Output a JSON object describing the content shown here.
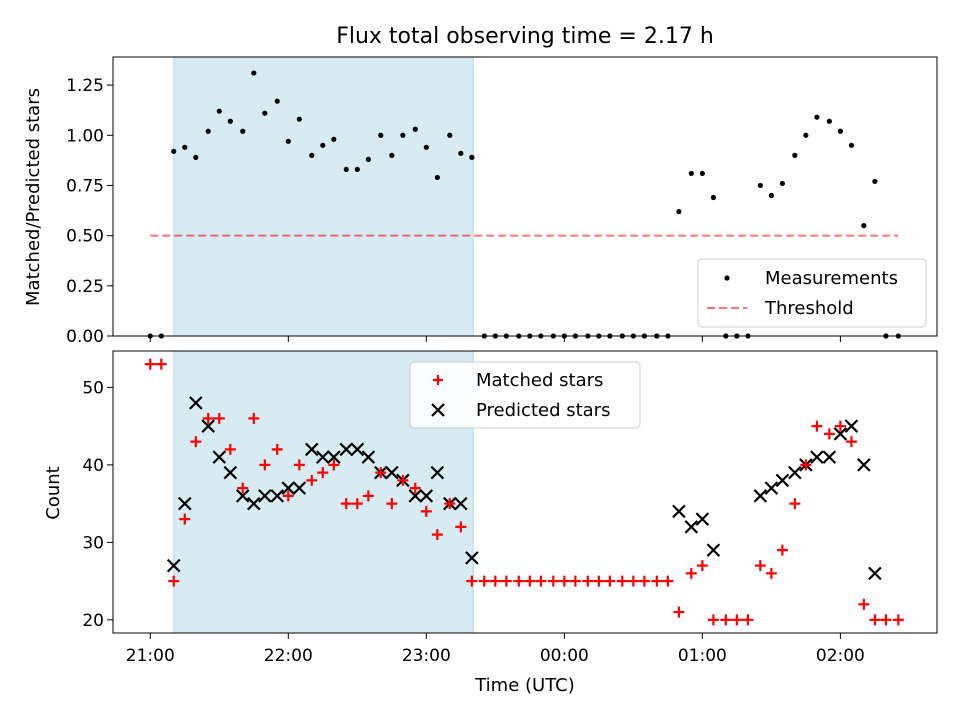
{
  "chart_data": [
    {
      "type": "scatter",
      "title": "Flux total observing time = 2.17 h",
      "xlabel": "",
      "ylabel": "Matched/Predicted stars",
      "x_unit": "hours since 21:00 UTC",
      "xlim": [
        -0.27,
        5.7
      ],
      "ylim": [
        0,
        1.39
      ],
      "yticks": [
        "0.00",
        "0.25",
        "0.50",
        "0.75",
        "1.00",
        "1.25"
      ],
      "ytick_values": [
        0,
        0.25,
        0.5,
        0.75,
        1.0,
        1.25
      ],
      "shaded_region": {
        "x_start": 0.17,
        "x_end": 2.34,
        "color": "#add8e6"
      },
      "legend": {
        "position": "lower right",
        "entries": [
          "Measurements",
          "Threshold"
        ]
      },
      "threshold": {
        "name": "Threshold",
        "y": 0.5,
        "x_start": 0.0,
        "x_end": 5.42,
        "color": "#ff0000",
        "style": "dashed"
      },
      "series": [
        {
          "name": "Measurements",
          "color": "#000000",
          "marker": "dot",
          "points": [
            [
              0.0,
              0.0
            ],
            [
              0.08,
              0.0
            ],
            [
              0.17,
              0.92
            ],
            [
              0.25,
              0.94
            ],
            [
              0.33,
              0.89
            ],
            [
              0.42,
              1.02
            ],
            [
              0.5,
              1.12
            ],
            [
              0.58,
              1.07
            ],
            [
              0.67,
              1.02
            ],
            [
              0.75,
              1.31
            ],
            [
              0.83,
              1.11
            ],
            [
              0.92,
              1.17
            ],
            [
              1.0,
              0.97
            ],
            [
              1.08,
              1.08
            ],
            [
              1.17,
              0.9
            ],
            [
              1.25,
              0.95
            ],
            [
              1.33,
              0.98
            ],
            [
              1.42,
              0.83
            ],
            [
              1.5,
              0.83
            ],
            [
              1.58,
              0.88
            ],
            [
              1.67,
              1.0
            ],
            [
              1.75,
              0.9
            ],
            [
              1.83,
              1.0
            ],
            [
              1.92,
              1.03
            ],
            [
              2.0,
              0.94
            ],
            [
              2.08,
              0.79
            ],
            [
              2.17,
              1.0
            ],
            [
              2.25,
              0.91
            ],
            [
              2.33,
              0.89
            ],
            [
              2.42,
              0.0
            ],
            [
              2.5,
              0.0
            ],
            [
              2.58,
              0.0
            ],
            [
              2.67,
              0.0
            ],
            [
              2.75,
              0.0
            ],
            [
              2.83,
              0.0
            ],
            [
              2.92,
              0.0
            ],
            [
              3.0,
              0.0
            ],
            [
              3.08,
              0.0
            ],
            [
              3.17,
              0.0
            ],
            [
              3.25,
              0.0
            ],
            [
              3.33,
              0.0
            ],
            [
              3.42,
              0.0
            ],
            [
              3.5,
              0.0
            ],
            [
              3.58,
              0.0
            ],
            [
              3.67,
              0.0
            ],
            [
              3.75,
              0.0
            ],
            [
              3.83,
              0.62
            ],
            [
              3.92,
              0.81
            ],
            [
              4.0,
              0.81
            ],
            [
              4.08,
              0.69
            ],
            [
              4.17,
              0.0
            ],
            [
              4.25,
              0.0
            ],
            [
              4.33,
              0.0
            ],
            [
              4.42,
              0.75
            ],
            [
              4.5,
              0.7
            ],
            [
              4.58,
              0.76
            ],
            [
              4.67,
              0.9
            ],
            [
              4.75,
              1.0
            ],
            [
              4.83,
              1.09
            ],
            [
              4.92,
              1.07
            ],
            [
              5.0,
              1.02
            ],
            [
              5.08,
              0.95
            ],
            [
              5.17,
              0.55
            ],
            [
              5.25,
              0.77
            ],
            [
              5.33,
              0.0
            ],
            [
              5.42,
              0.0
            ]
          ]
        }
      ]
    },
    {
      "type": "scatter",
      "title": "",
      "xlabel": "Time (UTC)",
      "ylabel": "Count",
      "x_unit": "hours since 21:00 UTC",
      "xlim": [
        -0.27,
        5.7
      ],
      "ylim": [
        18.3,
        54.7
      ],
      "yticks": [
        "20",
        "30",
        "40",
        "50"
      ],
      "ytick_values": [
        20,
        30,
        40,
        50
      ],
      "xticks": [
        "21:00",
        "22:00",
        "23:00",
        "00:00",
        "01:00",
        "02:00"
      ],
      "xtick_values": [
        0,
        1,
        2,
        3,
        4,
        5
      ],
      "shaded_region": {
        "x_start": 0.17,
        "x_end": 2.34,
        "color": "#add8e6"
      },
      "legend": {
        "position": "upper center",
        "entries": [
          "Matched stars",
          "Predicted stars"
        ]
      },
      "series": [
        {
          "name": "Matched stars",
          "color": "#ff0000",
          "marker": "+",
          "points": [
            [
              0.0,
              53
            ],
            [
              0.08,
              53
            ],
            [
              0.17,
              25
            ],
            [
              0.25,
              33
            ],
            [
              0.33,
              43
            ],
            [
              0.42,
              46
            ],
            [
              0.5,
              46
            ],
            [
              0.58,
              42
            ],
            [
              0.67,
              37
            ],
            [
              0.75,
              46
            ],
            [
              0.83,
              40
            ],
            [
              0.92,
              42
            ],
            [
              1.0,
              36
            ],
            [
              1.08,
              40
            ],
            [
              1.17,
              38
            ],
            [
              1.25,
              39
            ],
            [
              1.33,
              40
            ],
            [
              1.42,
              35
            ],
            [
              1.5,
              35
            ],
            [
              1.58,
              36
            ],
            [
              1.67,
              39
            ],
            [
              1.75,
              35
            ],
            [
              1.83,
              38
            ],
            [
              1.92,
              37
            ],
            [
              2.0,
              34
            ],
            [
              2.08,
              31
            ],
            [
              2.17,
              35
            ],
            [
              2.25,
              32
            ],
            [
              2.33,
              25
            ],
            [
              2.42,
              25
            ],
            [
              2.5,
              25
            ],
            [
              2.58,
              25
            ],
            [
              2.67,
              25
            ],
            [
              2.75,
              25
            ],
            [
              2.83,
              25
            ],
            [
              2.92,
              25
            ],
            [
              3.0,
              25
            ],
            [
              3.08,
              25
            ],
            [
              3.17,
              25
            ],
            [
              3.25,
              25
            ],
            [
              3.33,
              25
            ],
            [
              3.42,
              25
            ],
            [
              3.5,
              25
            ],
            [
              3.58,
              25
            ],
            [
              3.67,
              25
            ],
            [
              3.75,
              25
            ],
            [
              3.83,
              21
            ],
            [
              3.92,
              26
            ],
            [
              4.0,
              27
            ],
            [
              4.08,
              20
            ],
            [
              4.17,
              20
            ],
            [
              4.25,
              20
            ],
            [
              4.33,
              20
            ],
            [
              4.42,
              27
            ],
            [
              4.5,
              26
            ],
            [
              4.58,
              29
            ],
            [
              4.67,
              35
            ],
            [
              4.75,
              40
            ],
            [
              4.83,
              45
            ],
            [
              4.92,
              44
            ],
            [
              5.0,
              45
            ],
            [
              5.08,
              43
            ],
            [
              5.17,
              22
            ],
            [
              5.25,
              20
            ],
            [
              5.33,
              20
            ],
            [
              5.42,
              20
            ]
          ]
        },
        {
          "name": "Predicted stars",
          "color": "#000000",
          "marker": "x",
          "points": [
            [
              0.17,
              27
            ],
            [
              0.25,
              35
            ],
            [
              0.33,
              48
            ],
            [
              0.42,
              45
            ],
            [
              0.5,
              41
            ],
            [
              0.58,
              39
            ],
            [
              0.67,
              36
            ],
            [
              0.75,
              35
            ],
            [
              0.83,
              36
            ],
            [
              0.92,
              36
            ],
            [
              1.0,
              37
            ],
            [
              1.08,
              37
            ],
            [
              1.17,
              42
            ],
            [
              1.25,
              41
            ],
            [
              1.33,
              41
            ],
            [
              1.42,
              42
            ],
            [
              1.5,
              42
            ],
            [
              1.58,
              41
            ],
            [
              1.67,
              39
            ],
            [
              1.75,
              39
            ],
            [
              1.83,
              38
            ],
            [
              1.92,
              36
            ],
            [
              2.0,
              36
            ],
            [
              2.08,
              39
            ],
            [
              2.17,
              35
            ],
            [
              2.25,
              35
            ],
            [
              2.33,
              28
            ],
            [
              3.83,
              34
            ],
            [
              3.92,
              32
            ],
            [
              4.0,
              33
            ],
            [
              4.08,
              29
            ],
            [
              4.42,
              36
            ],
            [
              4.5,
              37
            ],
            [
              4.58,
              38
            ],
            [
              4.67,
              39
            ],
            [
              4.75,
              40
            ],
            [
              4.83,
              41
            ],
            [
              4.92,
              41
            ],
            [
              5.0,
              44
            ],
            [
              5.08,
              45
            ],
            [
              5.17,
              40
            ],
            [
              5.25,
              26
            ]
          ]
        }
      ]
    }
  ]
}
